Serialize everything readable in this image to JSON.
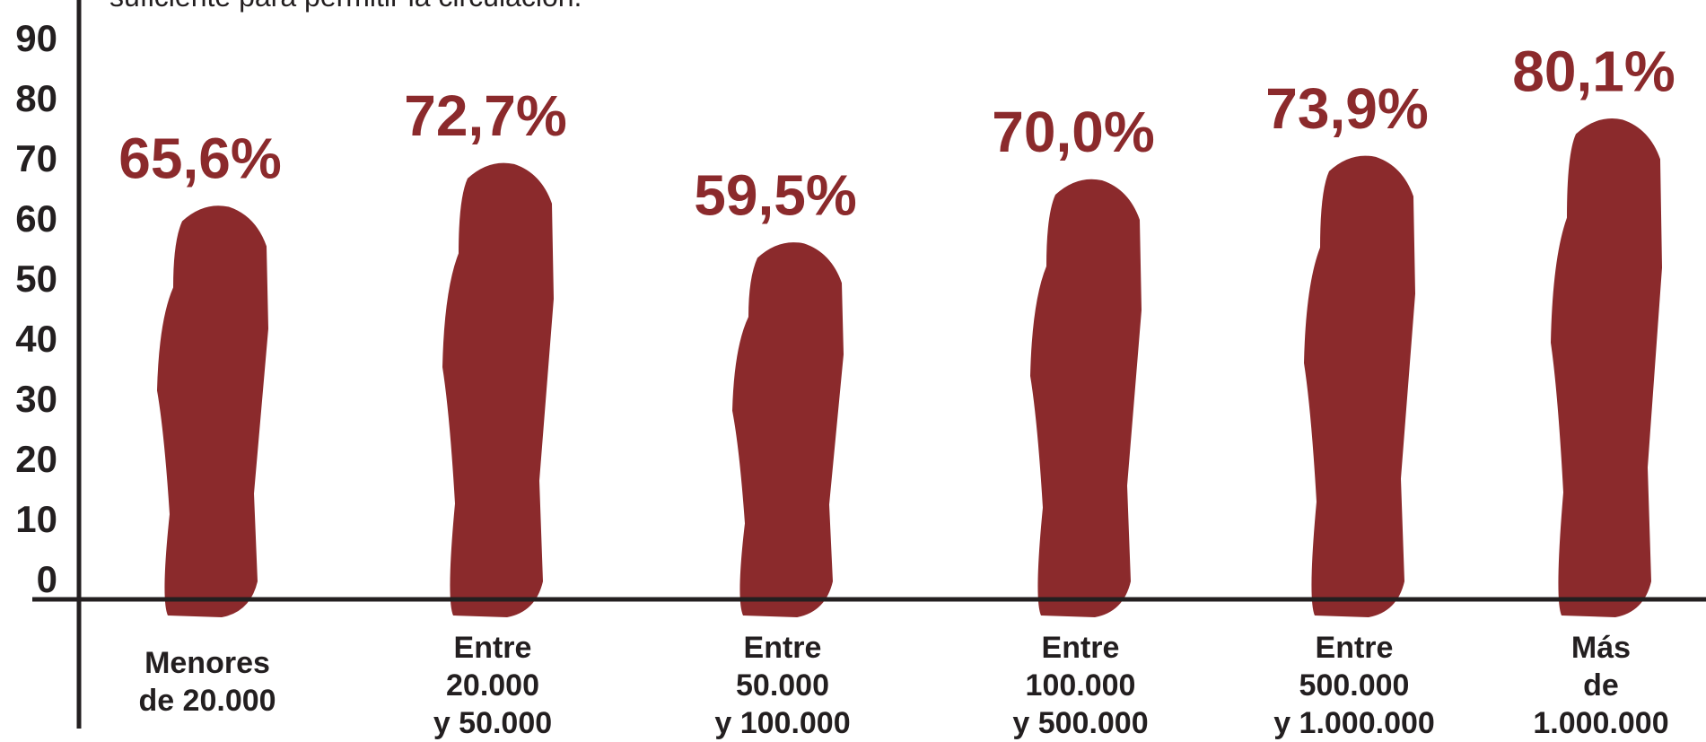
{
  "caption": "suficiente para permitir la circulación.",
  "colors": {
    "bar": "#8b2a2c",
    "label": "#8b2a2c",
    "axis": "#231f20"
  },
  "chart_data": {
    "type": "bar",
    "title": "",
    "xlabel": "",
    "ylabel": "",
    "ylim": [
      0,
      90
    ],
    "yticks": [
      "0",
      "10",
      "20",
      "30",
      "40",
      "50",
      "60",
      "70",
      "80",
      "90"
    ],
    "categories": [
      [
        "Menores",
        "de 20.000"
      ],
      [
        "Entre",
        "20.000",
        "y 50.000"
      ],
      [
        "Entre",
        "50.000",
        "y 100.000"
      ],
      [
        "Entre",
        "100.000",
        "y 500.000"
      ],
      [
        "Entre",
        "500.000",
        "y 1.000.000"
      ],
      [
        "Más",
        "de",
        "1.000.000"
      ]
    ],
    "values": [
      65.6,
      72.7,
      59.5,
      70.0,
      73.9,
      80.1
    ],
    "value_labels": [
      "65,6%",
      "72,7%",
      "59,5%",
      "70,0%",
      "73,9%",
      "80,1%"
    ],
    "grid": false,
    "legend": "none"
  }
}
